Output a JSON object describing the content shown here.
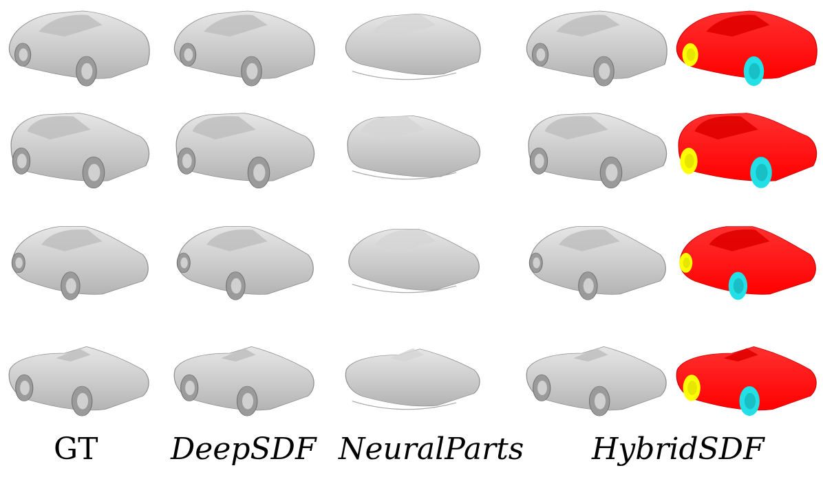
{
  "columns": [
    {
      "id": "gt",
      "label": "GT",
      "style": "gray"
    },
    {
      "id": "deepsdf",
      "label": "DeepSDF",
      "style": "gray"
    },
    {
      "id": "neuralparts",
      "label": "NeuralParts",
      "style": "gray-blobby"
    },
    {
      "id": "hybridsdf",
      "label": "HybridSDF",
      "style": "gray"
    },
    {
      "id": "hybridsdf-parts",
      "label": "",
      "style": "colored"
    }
  ],
  "rows": [
    {
      "id": "sedan-police",
      "shape": "sedan"
    },
    {
      "id": "hatchback-mini",
      "shape": "hatch"
    },
    {
      "id": "sedan-compact",
      "shape": "compact"
    },
    {
      "id": "convertible",
      "shape": "convertible"
    }
  ],
  "colors": {
    "background": "#ffffff",
    "gray_body": "#c9c9c9",
    "gray_light": "#e6e6e6",
    "gray_dark": "#8e8e8e",
    "part_body": "#ff0000",
    "part_rear_wheel": "#ffff00",
    "part_front_wheel": "#22e0e6",
    "label_text": "#000000"
  }
}
